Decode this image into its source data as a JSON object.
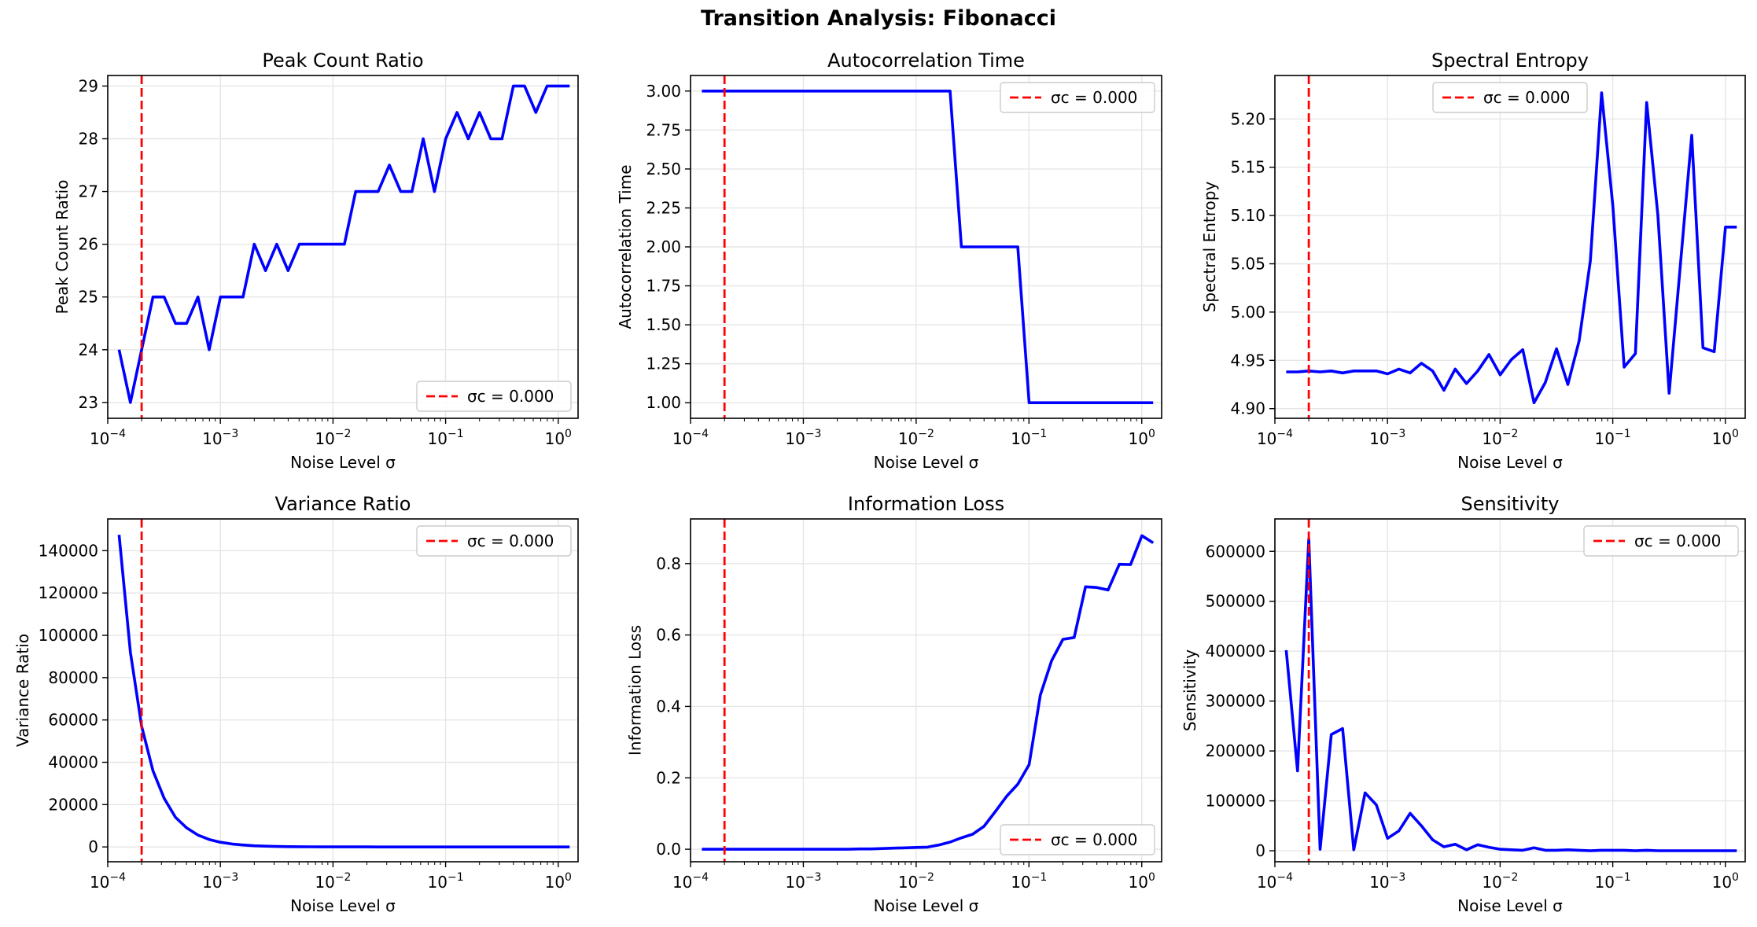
{
  "figure": {
    "title": "Transition Analysis: Fibonacci"
  },
  "colors": {
    "line": "#0000ff",
    "critical": "#ff0000",
    "grid": "#e6e6e6",
    "frame": "#000000"
  },
  "chart_data": [
    {
      "type": "line",
      "title": "Peak Count Ratio",
      "xlabel": "Noise Level σ",
      "ylabel": "Peak Count Ratio",
      "xscale": "log",
      "xlim": [
        0.0001,
        1.5
      ],
      "ylim": [
        22.7,
        29.2
      ],
      "yticks": [
        23,
        24,
        25,
        26,
        27,
        28,
        29
      ],
      "yticklabels": [
        "23",
        "24",
        "25",
        "26",
        "27",
        "28",
        "29"
      ],
      "grid": true,
      "legend": {
        "loc": "lower right",
        "label": "σc = 0.000",
        "x": 0.0002
      },
      "series": [
        {
          "x": [
            0.000126,
            0.000159,
            0.0002,
            0.000252,
            0.000317,
            0.000399,
            0.000502,
            0.000632,
            0.000796,
            0.001002,
            0.001262,
            0.001589,
            0.002,
            0.002518,
            0.00317,
            0.003991,
            0.005024,
            0.006325,
            0.007962,
            0.010024,
            0.012619,
            0.015887,
            0.02,
            0.025179,
            0.031698,
            0.039905,
            0.050237,
            0.063245,
            0.079621,
            0.100237,
            0.126191,
            0.158866,
            0.2,
            0.251785,
            0.316979,
            0.399052,
            0.502377,
            0.632456,
            0.796214,
            1.002374,
            1.261915
          ],
          "y": [
            24,
            23,
            24,
            25,
            25,
            24.5,
            24.5,
            25,
            24,
            25,
            25,
            25,
            26,
            25.5,
            26,
            25.5,
            26,
            26,
            26,
            26,
            26,
            27,
            27,
            27,
            27.5,
            27,
            27,
            28,
            27,
            28,
            28.5,
            28,
            28.5,
            28,
            28,
            29,
            29,
            28.5,
            29,
            29,
            29
          ]
        }
      ]
    },
    {
      "type": "line",
      "title": "Autocorrelation Time",
      "xlabel": "Noise Level σ",
      "ylabel": "Autocorrelation Time",
      "xscale": "log",
      "xlim": [
        0.0001,
        1.5
      ],
      "ylim": [
        0.9,
        3.1
      ],
      "yticks": [
        1,
        1.25,
        1.5,
        1.75,
        2,
        2.25,
        2.5,
        2.75,
        3
      ],
      "yticklabels": [
        "1.00",
        "1.25",
        "1.50",
        "1.75",
        "2.00",
        "2.25",
        "2.50",
        "2.75",
        "3.00"
      ],
      "grid": true,
      "legend": {
        "loc": "upper right",
        "label": "σc = 0.000",
        "x": 0.0002
      },
      "series": [
        {
          "x": [
            0.000126,
            0.000159,
            0.0002,
            0.000252,
            0.000317,
            0.000399,
            0.000502,
            0.000632,
            0.000796,
            0.001002,
            0.001262,
            0.001589,
            0.002,
            0.002518,
            0.00317,
            0.003991,
            0.005024,
            0.006325,
            0.007962,
            0.010024,
            0.012619,
            0.015887,
            0.02,
            0.025179,
            0.031698,
            0.039905,
            0.050237,
            0.063245,
            0.079621,
            0.100237,
            0.126191,
            0.158866,
            0.2,
            0.251785,
            0.316979,
            0.399052,
            0.502377,
            0.632456,
            0.796214,
            1.002374,
            1.261915
          ],
          "y": [
            3,
            3,
            3,
            3,
            3,
            3,
            3,
            3,
            3,
            3,
            3,
            3,
            3,
            3,
            3,
            3,
            3,
            3,
            3,
            3,
            3,
            3,
            3,
            2,
            2,
            2,
            2,
            2,
            2,
            1,
            1,
            1,
            1,
            1,
            1,
            1,
            1,
            1,
            1,
            1,
            1
          ]
        }
      ]
    },
    {
      "type": "line",
      "title": "Spectral Entropy",
      "xlabel": "Noise Level σ",
      "ylabel": "Spectral Entropy",
      "xscale": "log",
      "xlim": [
        0.0001,
        1.5
      ],
      "ylim": [
        4.89,
        5.245
      ],
      "yticks": [
        4.9,
        4.95,
        5,
        5.05,
        5.1,
        5.15,
        5.2
      ],
      "yticklabels": [
        "4.90",
        "4.95",
        "5.00",
        "5.05",
        "5.10",
        "5.15",
        "5.20"
      ],
      "grid": true,
      "legend": {
        "loc": "upper center",
        "label": "σc = 0.000",
        "x": 0.0002
      },
      "series": [
        {
          "x": [
            0.000126,
            0.000159,
            0.0002,
            0.000252,
            0.000317,
            0.000399,
            0.000502,
            0.000632,
            0.000796,
            0.001002,
            0.001262,
            0.001589,
            0.002,
            0.002518,
            0.00317,
            0.003991,
            0.005024,
            0.006325,
            0.007962,
            0.010024,
            0.012619,
            0.015887,
            0.02,
            0.025179,
            0.031698,
            0.039905,
            0.050237,
            0.063245,
            0.079621,
            0.100237,
            0.126191,
            0.158866,
            0.2,
            0.251785,
            0.316979,
            0.399052,
            0.502377,
            0.632456,
            0.796214,
            1.002374,
            1.261915
          ],
          "y": [
            4.938,
            4.938,
            4.939,
            4.938,
            4.939,
            4.937,
            4.939,
            4.939,
            4.939,
            4.936,
            4.941,
            4.937,
            4.947,
            4.939,
            4.919,
            4.941,
            4.926,
            4.939,
            4.956,
            4.935,
            4.951,
            4.961,
            4.906,
            4.927,
            4.962,
            4.925,
            4.97,
            5.053,
            5.227,
            5.11,
            4.943,
            4.957,
            5.217,
            5.1,
            4.916,
            5.05,
            5.183,
            4.963,
            4.959,
            5.088,
            5.088
          ]
        }
      ]
    },
    {
      "type": "line",
      "title": "Variance Ratio",
      "xlabel": "Noise Level σ",
      "ylabel": "Variance Ratio",
      "xscale": "log",
      "xlim": [
        0.0001,
        1.5
      ],
      "ylim": [
        -7000,
        155000
      ],
      "yticks": [
        0,
        20000,
        40000,
        60000,
        80000,
        100000,
        120000,
        140000
      ],
      "yticklabels": [
        "0",
        "20000",
        "40000",
        "60000",
        "80000",
        "100000",
        "120000",
        "140000"
      ],
      "grid": true,
      "legend": {
        "loc": "upper right",
        "label": "σc = 0.000",
        "x": 0.0002
      },
      "series": [
        {
          "x": [
            0.000126,
            0.000159,
            0.0002,
            0.000252,
            0.000317,
            0.000399,
            0.000502,
            0.000632,
            0.000796,
            0.001002,
            0.001262,
            0.001589,
            0.002,
            0.002518,
            0.00317,
            0.003991,
            0.005024,
            0.006325,
            0.007962,
            0.010024,
            0.012619,
            0.015887,
            0.02,
            0.025179,
            0.031698,
            0.039905,
            0.050237,
            0.063245,
            0.079621,
            0.100237,
            0.126191,
            0.158866,
            0.2,
            0.251785,
            0.316979,
            0.399052,
            0.502377,
            0.632456,
            0.796214,
            1.002374,
            1.261915
          ],
          "y": [
            147500,
            92000,
            57000,
            36000,
            23000,
            14000,
            9000,
            5600,
            3500,
            2200,
            1400,
            900,
            550,
            350,
            220,
            140,
            90,
            55,
            35,
            22,
            14,
            9,
            5,
            3,
            2,
            1,
            1,
            0,
            0,
            0,
            0,
            0,
            0,
            0,
            0,
            0,
            0,
            0,
            0,
            0,
            0
          ]
        }
      ]
    },
    {
      "type": "line",
      "title": "Information Loss",
      "xlabel": "Noise Level σ",
      "ylabel": "Information Loss",
      "xscale": "log",
      "xlim": [
        0.0001,
        1.5
      ],
      "ylim": [
        -0.035,
        0.925
      ],
      "yticks": [
        0,
        0.2,
        0.4,
        0.6,
        0.8
      ],
      "yticklabels": [
        "0.0",
        "0.2",
        "0.4",
        "0.6",
        "0.8"
      ],
      "grid": true,
      "legend": {
        "loc": "lower right",
        "label": "σc = 0.000",
        "x": 0.0002
      },
      "series": [
        {
          "x": [
            0.000126,
            0.000159,
            0.0002,
            0.000252,
            0.000317,
            0.000399,
            0.000502,
            0.000632,
            0.000796,
            0.001002,
            0.001262,
            0.001589,
            0.002,
            0.002518,
            0.00317,
            0.003991,
            0.005024,
            0.006325,
            0.007962,
            0.010024,
            0.012619,
            0.015887,
            0.02,
            0.025179,
            0.031698,
            0.039905,
            0.050237,
            0.063245,
            0.079621,
            0.100237,
            0.126191,
            0.158866,
            0.2,
            0.251785,
            0.316979,
            0.399052,
            0.502377,
            0.632456,
            0.796214,
            1.002374,
            1.261915
          ],
          "y": [
            0,
            0,
            0,
            0,
            0,
            0,
            0,
            0,
            0,
            0,
            0,
            0,
            0,
            0,
            0.001,
            0.001,
            0.002,
            0.003,
            0.004,
            0.005,
            0.006,
            0.012,
            0.02,
            0.032,
            0.042,
            0.064,
            0.105,
            0.148,
            0.182,
            0.237,
            0.432,
            0.528,
            0.588,
            0.593,
            0.735,
            0.733,
            0.726,
            0.798,
            0.797,
            0.878,
            0.858
          ]
        }
      ]
    },
    {
      "type": "line",
      "title": "Sensitivity",
      "xlabel": "Noise Level σ",
      "ylabel": "Sensitivity",
      "xscale": "log",
      "xlim": [
        0.0001,
        1.5
      ],
      "ylim": [
        -22000,
        665000
      ],
      "yticks": [
        0,
        100000,
        200000,
        300000,
        400000,
        500000,
        600000
      ],
      "yticklabels": [
        "0",
        "100000",
        "200000",
        "300000",
        "400000",
        "500000",
        "600000"
      ],
      "grid": true,
      "legend": {
        "loc": "upper right",
        "label": "σc = 0.000",
        "x": 0.0002
      },
      "series": [
        {
          "x": [
            0.000126,
            0.000159,
            0.0002,
            0.000252,
            0.000317,
            0.000399,
            0.000502,
            0.000632,
            0.000796,
            0.001002,
            0.001262,
            0.001589,
            0.002,
            0.002518,
            0.00317,
            0.003991,
            0.005024,
            0.006325,
            0.007962,
            0.010024,
            0.012619,
            0.015887,
            0.02,
            0.025179,
            0.031698,
            0.039905,
            0.050237,
            0.063245,
            0.079621,
            0.100237,
            0.126191,
            0.158866,
            0.2,
            0.251785,
            0.316979,
            0.399052,
            0.502377,
            0.632456,
            0.796214,
            1.002374,
            1.261915
          ],
          "y": [
            402000,
            160000,
            625000,
            3000,
            233000,
            245000,
            2000,
            116000,
            92000,
            25000,
            40000,
            75000,
            50000,
            22000,
            8000,
            13000,
            2000,
            12000,
            7000,
            3000,
            2000,
            1000,
            6000,
            1000,
            1000,
            2000,
            1000,
            0,
            1000,
            1000,
            1000,
            0,
            1000,
            0,
            0,
            0,
            0,
            0,
            0,
            0,
            0
          ]
        }
      ]
    }
  ]
}
